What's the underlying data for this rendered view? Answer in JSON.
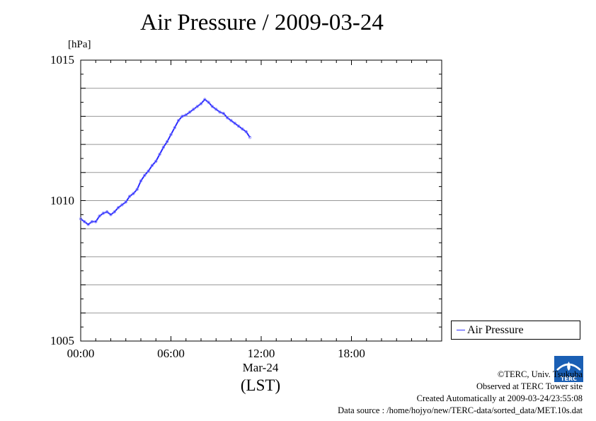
{
  "colors": {
    "series": "#2a2aff",
    "grid": "#999999",
    "logo": "#1a5fb4"
  },
  "icons": {
    "logo": "terc-logo-icon"
  },
  "footer": {
    "copyright": "©TERC, Univ. Tsukuba",
    "observed": "Observed at TERC Tower site",
    "created": "Created Automatically at 2009-03-24/23:55:08",
    "source": "Data source : /home/hojyo/new/TERC-data/sorted_data/MET.10s.dat"
  },
  "chart_data": {
    "type": "line",
    "title": "Air Pressure / 2009-03-24",
    "ylabel": "[hPa]",
    "xlabel": "(LST)",
    "x_date_label": "Mar-24",
    "ylim": [
      1005,
      1015
    ],
    "xlim": [
      0,
      24
    ],
    "x_ticks": [
      {
        "value": 0,
        "label": "00:00"
      },
      {
        "value": 6,
        "label": "06:00"
      },
      {
        "value": 12,
        "label": "12:00"
      },
      {
        "value": 18,
        "label": "18:00"
      }
    ],
    "y_ticks": [
      {
        "value": 1005,
        "label": "1005"
      },
      {
        "value": 1010,
        "label": "1010"
      },
      {
        "value": 1015,
        "label": "1015"
      }
    ],
    "grid": true,
    "legend": {
      "position": "bottom-right-outside",
      "entries": [
        "Air Pressure"
      ]
    },
    "series": [
      {
        "name": "Air Pressure",
        "x": [
          0.0,
          0.25,
          0.5,
          0.75,
          1.0,
          1.25,
          1.5,
          1.75,
          2.0,
          2.25,
          2.5,
          2.75,
          3.0,
          3.25,
          3.5,
          3.75,
          4.0,
          4.25,
          4.5,
          4.75,
          5.0,
          5.25,
          5.5,
          5.75,
          6.0,
          6.25,
          6.5,
          6.75,
          7.0,
          7.25,
          7.5,
          7.75,
          8.0,
          8.25,
          8.5,
          8.75,
          9.0,
          9.25,
          9.5,
          9.75,
          10.0,
          10.25,
          10.5,
          10.75,
          11.0,
          11.25
        ],
        "values": [
          1009.35,
          1009.25,
          1009.15,
          1009.25,
          1009.25,
          1009.45,
          1009.55,
          1009.6,
          1009.5,
          1009.6,
          1009.75,
          1009.85,
          1009.95,
          1010.15,
          1010.25,
          1010.4,
          1010.7,
          1010.9,
          1011.05,
          1011.25,
          1011.4,
          1011.65,
          1011.9,
          1012.1,
          1012.35,
          1012.6,
          1012.85,
          1013.0,
          1013.05,
          1013.15,
          1013.25,
          1013.35,
          1013.45,
          1013.6,
          1013.5,
          1013.35,
          1013.25,
          1013.15,
          1013.1,
          1012.95,
          1012.85,
          1012.75,
          1012.65,
          1012.55,
          1012.45,
          1012.25
        ]
      }
    ]
  }
}
